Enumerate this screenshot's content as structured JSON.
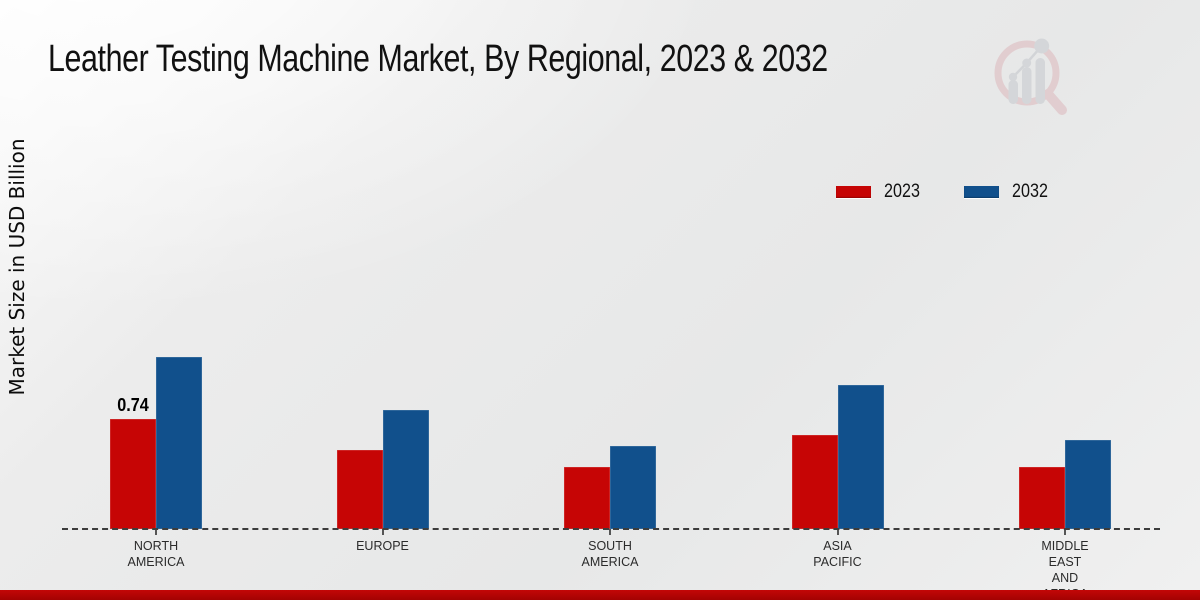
{
  "page": {
    "background_color": "#e9eaea",
    "footer_bar_color": "#b30404",
    "logo_icon": "magnifier-bar-chart-logo"
  },
  "chart_data": {
    "type": "bar",
    "title": "Leather Testing Machine Market, By Regional, 2023 & 2032",
    "xlabel": "",
    "ylabel": "Market Size in USD Billion",
    "legend_position": "top-right",
    "grid": false,
    "baseline_style": "dashed",
    "categories": [
      "NORTH AMERICA",
      "EUROPE",
      "SOUTH AMERICA",
      "ASIA PACIFIC",
      "MIDDLE EAST AND AFRICA"
    ],
    "category_label_lines": [
      [
        "NORTH",
        "AMERICA"
      ],
      [
        "EUROPE"
      ],
      [
        "SOUTH",
        "AMERICA"
      ],
      [
        "ASIA",
        "PACIFIC"
      ],
      [
        "MIDDLE",
        "EAST",
        "AND",
        "AFRICA"
      ]
    ],
    "series": [
      {
        "name": "2023",
        "color": "#c60505",
        "values": [
          0.74,
          0.53,
          0.42,
          0.63,
          0.42
        ]
      },
      {
        "name": "2032",
        "color": "#11508c",
        "values": [
          1.16,
          0.8,
          0.56,
          0.97,
          0.6
        ]
      }
    ],
    "shown_data_labels": [
      {
        "category": "NORTH AMERICA",
        "series": "2023",
        "label": "0.74"
      }
    ],
    "ylim": [
      0,
      1.3
    ]
  }
}
